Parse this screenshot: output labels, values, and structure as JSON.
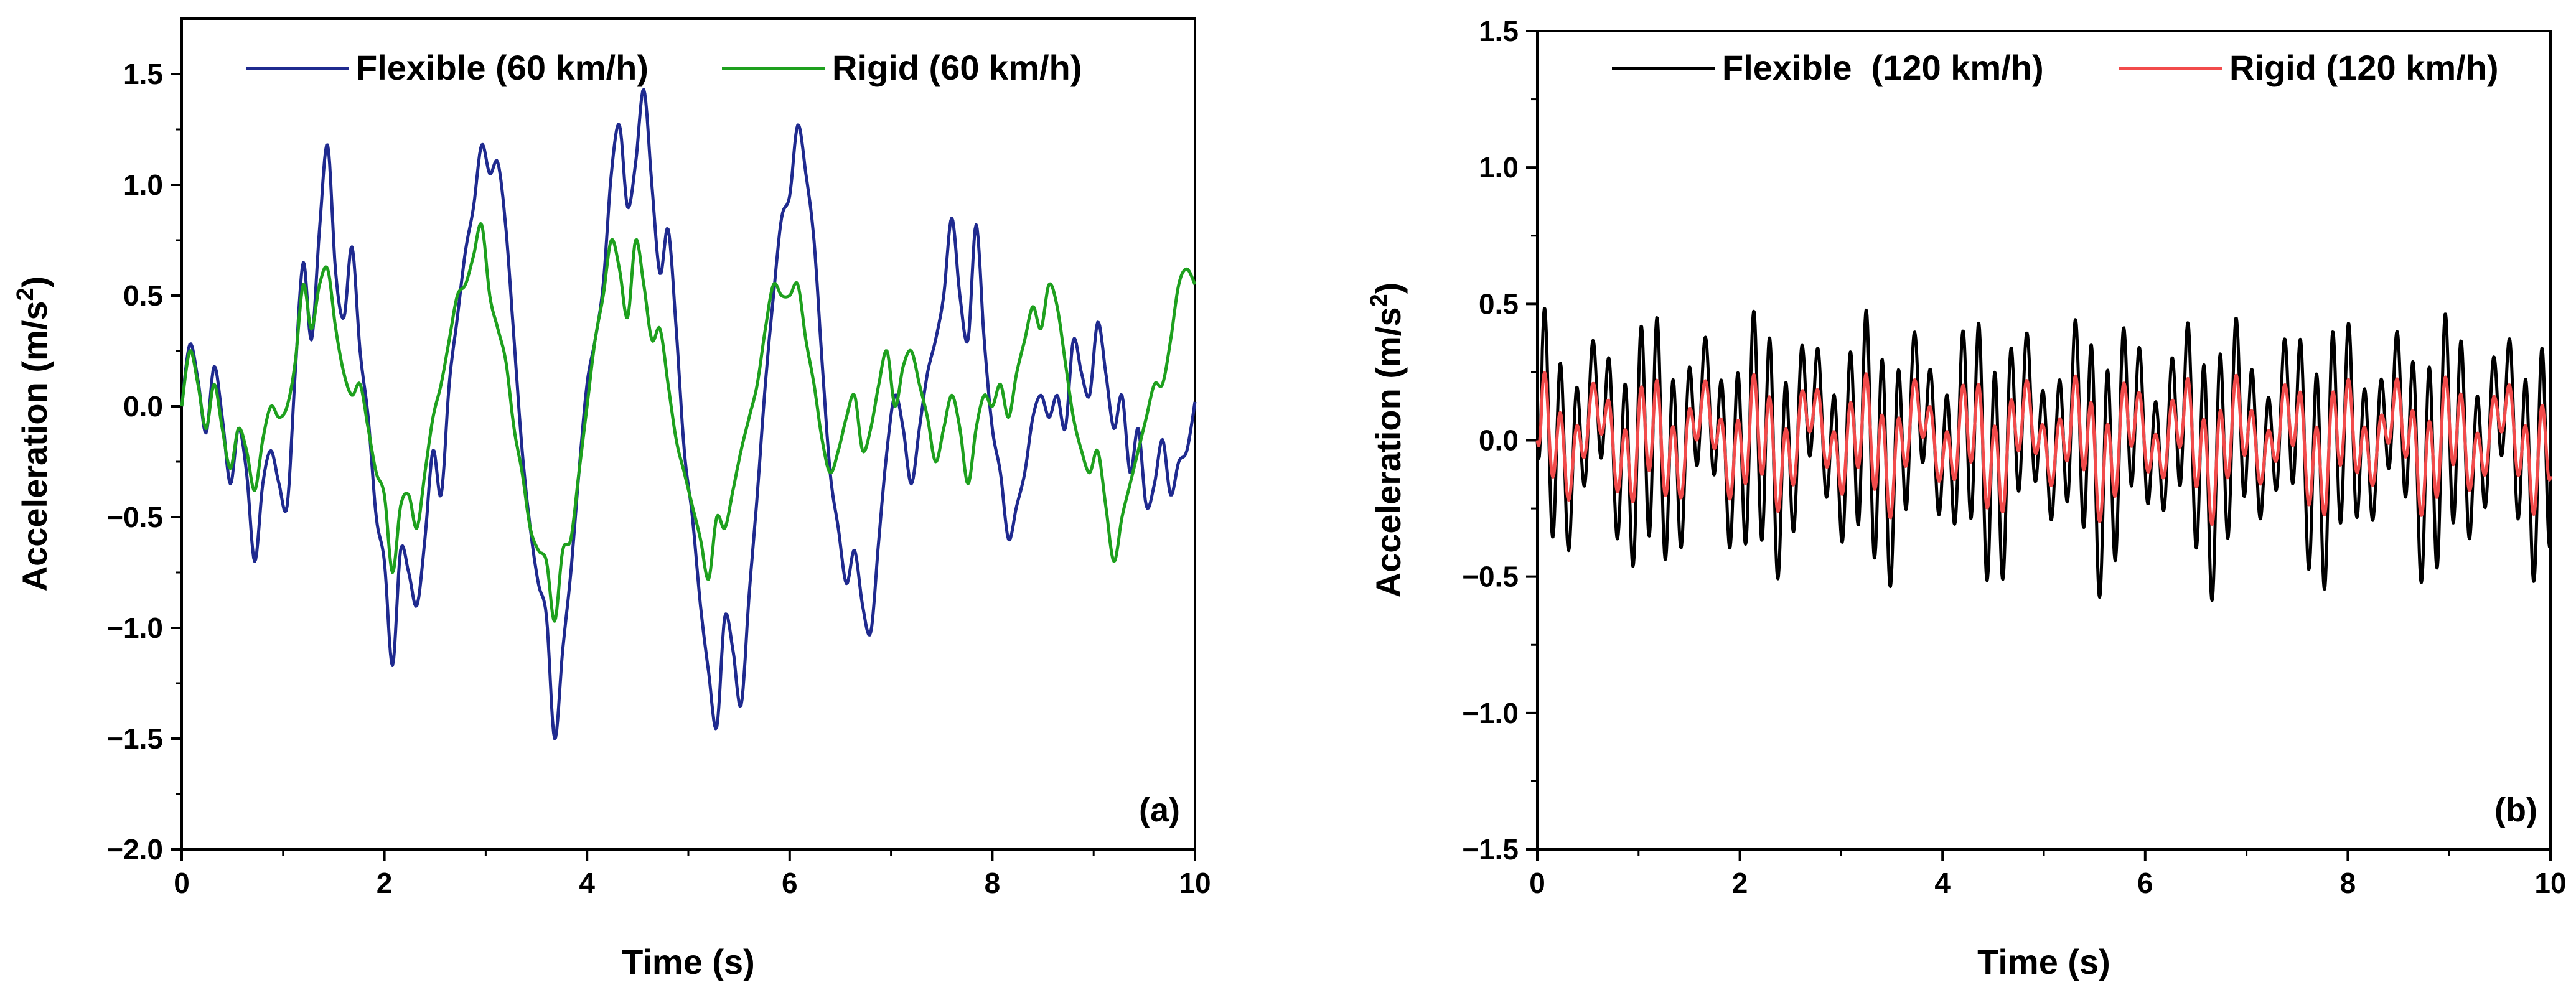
{
  "chart_data": [
    {
      "type": "line",
      "panel_label": "(a)",
      "xlabel": "Time (s)",
      "ylabel_main": "Acceleration (m/s",
      "ylabel_sup": "2",
      "ylabel_tail": ")",
      "xlim": [
        0,
        10
      ],
      "ylim": [
        -2.0,
        1.75
      ],
      "xticks": [
        0,
        2,
        4,
        6,
        8,
        10
      ],
      "xtick_labels": [
        "0",
        "2",
        "4",
        "6",
        "8",
        "10"
      ],
      "yticks": [
        -2.0,
        -1.5,
        -1.0,
        -0.5,
        0.0,
        0.5,
        1.0,
        1.5
      ],
      "ytick_labels": [
        "−2.0",
        "−1.5",
        "−1.0",
        "−0.5",
        "0.0",
        "0.5",
        "1.0",
        "1.5"
      ],
      "grid": false,
      "legend_position": "top",
      "series": [
        {
          "name": "Flexible (60 km/h)",
          "color": "#1f2a8f",
          "points": [
            [
              0,
              0.0
            ],
            [
              0.08,
              0.28
            ],
            [
              0.16,
              0.12
            ],
            [
              0.24,
              -0.12
            ],
            [
              0.32,
              0.18
            ],
            [
              0.4,
              -0.05
            ],
            [
              0.48,
              -0.35
            ],
            [
              0.56,
              -0.1
            ],
            [
              0.64,
              -0.3
            ],
            [
              0.72,
              -0.7
            ],
            [
              0.8,
              -0.35
            ],
            [
              0.88,
              -0.2
            ],
            [
              0.96,
              -0.35
            ],
            [
              1.04,
              -0.45
            ],
            [
              1.12,
              0.15
            ],
            [
              1.2,
              0.65
            ],
            [
              1.28,
              0.3
            ],
            [
              1.36,
              0.8
            ],
            [
              1.44,
              1.18
            ],
            [
              1.52,
              0.6
            ],
            [
              1.6,
              0.4
            ],
            [
              1.68,
              0.72
            ],
            [
              1.76,
              0.25
            ],
            [
              1.84,
              -0.05
            ],
            [
              1.92,
              -0.5
            ],
            [
              2.0,
              -0.7
            ],
            [
              2.08,
              -1.17
            ],
            [
              2.16,
              -0.65
            ],
            [
              2.24,
              -0.75
            ],
            [
              2.32,
              -0.9
            ],
            [
              2.4,
              -0.6
            ],
            [
              2.48,
              -0.2
            ],
            [
              2.56,
              -0.4
            ],
            [
              2.64,
              0.1
            ],
            [
              2.72,
              0.4
            ],
            [
              2.8,
              0.7
            ],
            [
              2.88,
              0.9
            ],
            [
              2.96,
              1.18
            ],
            [
              3.04,
              1.05
            ],
            [
              3.12,
              1.1
            ],
            [
              3.2,
              0.8
            ],
            [
              3.28,
              0.3
            ],
            [
              3.36,
              -0.2
            ],
            [
              3.44,
              -0.55
            ],
            [
              3.52,
              -0.8
            ],
            [
              3.6,
              -0.95
            ],
            [
              3.68,
              -1.5
            ],
            [
              3.76,
              -1.1
            ],
            [
              3.84,
              -0.75
            ],
            [
              3.92,
              -0.3
            ],
            [
              4.0,
              0.1
            ],
            [
              4.08,
              0.3
            ],
            [
              4.16,
              0.55
            ],
            [
              4.24,
              1.05
            ],
            [
              4.32,
              1.27
            ],
            [
              4.4,
              0.9
            ],
            [
              4.48,
              1.1
            ],
            [
              4.56,
              1.43
            ],
            [
              4.64,
              1.0
            ],
            [
              4.72,
              0.6
            ],
            [
              4.8,
              0.8
            ],
            [
              4.88,
              0.35
            ],
            [
              4.96,
              -0.2
            ],
            [
              5.04,
              -0.5
            ],
            [
              5.12,
              -0.9
            ],
            [
              5.2,
              -1.2
            ],
            [
              5.28,
              -1.45
            ],
            [
              5.36,
              -0.95
            ],
            [
              5.44,
              -1.1
            ],
            [
              5.52,
              -1.35
            ],
            [
              5.6,
              -0.85
            ],
            [
              5.68,
              -0.4
            ],
            [
              5.76,
              0.1
            ],
            [
              5.84,
              0.5
            ],
            [
              5.92,
              0.85
            ],
            [
              6.0,
              0.95
            ],
            [
              6.08,
              1.27
            ],
            [
              6.16,
              1.05
            ],
            [
              6.24,
              0.75
            ],
            [
              6.32,
              0.2
            ],
            [
              6.4,
              -0.3
            ],
            [
              6.48,
              -0.55
            ],
            [
              6.56,
              -0.8
            ],
            [
              6.64,
              -0.65
            ],
            [
              6.72,
              -0.9
            ],
            [
              6.8,
              -1.02
            ],
            [
              6.88,
              -0.6
            ],
            [
              6.96,
              -0.2
            ],
            [
              7.04,
              0.05
            ],
            [
              7.12,
              -0.1
            ],
            [
              7.2,
              -0.35
            ],
            [
              7.28,
              -0.1
            ],
            [
              7.36,
              0.15
            ],
            [
              7.44,
              0.3
            ],
            [
              7.52,
              0.5
            ],
            [
              7.6,
              0.85
            ],
            [
              7.68,
              0.5
            ],
            [
              7.76,
              0.3
            ],
            [
              7.84,
              0.82
            ],
            [
              7.92,
              0.3
            ],
            [
              8.0,
              -0.1
            ],
            [
              8.08,
              -0.3
            ],
            [
              8.16,
              -0.6
            ],
            [
              8.24,
              -0.45
            ],
            [
              8.32,
              -0.3
            ],
            [
              8.4,
              -0.05
            ],
            [
              8.48,
              0.05
            ],
            [
              8.56,
              -0.05
            ],
            [
              8.64,
              0.05
            ],
            [
              8.72,
              -0.1
            ],
            [
              8.8,
              0.3
            ],
            [
              8.88,
              0.15
            ],
            [
              8.96,
              0.05
            ],
            [
              9.04,
              0.38
            ],
            [
              9.12,
              0.15
            ],
            [
              9.2,
              -0.1
            ],
            [
              9.28,
              0.05
            ],
            [
              9.36,
              -0.3
            ],
            [
              9.44,
              -0.1
            ],
            [
              9.52,
              -0.45
            ],
            [
              9.6,
              -0.35
            ],
            [
              9.68,
              -0.15
            ],
            [
              9.76,
              -0.4
            ],
            [
              9.84,
              -0.25
            ],
            [
              9.92,
              -0.2
            ],
            [
              10.0,
              0.02
            ]
          ]
        },
        {
          "name": "Rigid (60 km/h)",
          "color": "#1ea01e",
          "points": [
            [
              0,
              0.0
            ],
            [
              0.08,
              0.25
            ],
            [
              0.16,
              0.1
            ],
            [
              0.24,
              -0.1
            ],
            [
              0.32,
              0.1
            ],
            [
              0.4,
              -0.1
            ],
            [
              0.48,
              -0.28
            ],
            [
              0.56,
              -0.1
            ],
            [
              0.64,
              -0.2
            ],
            [
              0.72,
              -0.38
            ],
            [
              0.8,
              -0.15
            ],
            [
              0.88,
              0.0
            ],
            [
              0.96,
              -0.05
            ],
            [
              1.04,
              0.0
            ],
            [
              1.12,
              0.2
            ],
            [
              1.2,
              0.55
            ],
            [
              1.28,
              0.35
            ],
            [
              1.36,
              0.55
            ],
            [
              1.44,
              0.62
            ],
            [
              1.52,
              0.35
            ],
            [
              1.6,
              0.15
            ],
            [
              1.68,
              0.05
            ],
            [
              1.76,
              0.1
            ],
            [
              1.84,
              -0.1
            ],
            [
              1.92,
              -0.3
            ],
            [
              2.0,
              -0.4
            ],
            [
              2.08,
              -0.75
            ],
            [
              2.16,
              -0.45
            ],
            [
              2.24,
              -0.4
            ],
            [
              2.32,
              -0.55
            ],
            [
              2.4,
              -0.3
            ],
            [
              2.48,
              -0.05
            ],
            [
              2.56,
              0.1
            ],
            [
              2.64,
              0.3
            ],
            [
              2.72,
              0.5
            ],
            [
              2.8,
              0.55
            ],
            [
              2.88,
              0.68
            ],
            [
              2.96,
              0.82
            ],
            [
              3.04,
              0.5
            ],
            [
              3.12,
              0.35
            ],
            [
              3.2,
              0.2
            ],
            [
              3.28,
              -0.1
            ],
            [
              3.36,
              -0.3
            ],
            [
              3.44,
              -0.55
            ],
            [
              3.52,
              -0.65
            ],
            [
              3.6,
              -0.7
            ],
            [
              3.68,
              -0.97
            ],
            [
              3.76,
              -0.65
            ],
            [
              3.84,
              -0.6
            ],
            [
              3.92,
              -0.3
            ],
            [
              4.0,
              0.0
            ],
            [
              4.08,
              0.3
            ],
            [
              4.16,
              0.5
            ],
            [
              4.24,
              0.75
            ],
            [
              4.32,
              0.62
            ],
            [
              4.4,
              0.4
            ],
            [
              4.48,
              0.75
            ],
            [
              4.56,
              0.55
            ],
            [
              4.64,
              0.3
            ],
            [
              4.72,
              0.35
            ],
            [
              4.8,
              0.1
            ],
            [
              4.88,
              -0.15
            ],
            [
              4.96,
              -0.3
            ],
            [
              5.04,
              -0.45
            ],
            [
              5.12,
              -0.6
            ],
            [
              5.2,
              -0.78
            ],
            [
              5.28,
              -0.5
            ],
            [
              5.36,
              -0.55
            ],
            [
              5.44,
              -0.38
            ],
            [
              5.52,
              -0.2
            ],
            [
              5.6,
              -0.05
            ],
            [
              5.68,
              0.1
            ],
            [
              5.76,
              0.35
            ],
            [
              5.84,
              0.55
            ],
            [
              5.92,
              0.5
            ],
            [
              6.0,
              0.5
            ],
            [
              6.08,
              0.55
            ],
            [
              6.16,
              0.3
            ],
            [
              6.24,
              0.1
            ],
            [
              6.32,
              -0.15
            ],
            [
              6.4,
              -0.3
            ],
            [
              6.48,
              -0.2
            ],
            [
              6.56,
              -0.05
            ],
            [
              6.64,
              0.05
            ],
            [
              6.72,
              -0.2
            ],
            [
              6.8,
              -0.1
            ],
            [
              6.88,
              0.1
            ],
            [
              6.96,
              0.25
            ],
            [
              7.04,
              0.0
            ],
            [
              7.12,
              0.18
            ],
            [
              7.2,
              0.25
            ],
            [
              7.28,
              0.1
            ],
            [
              7.36,
              -0.05
            ],
            [
              7.44,
              -0.25
            ],
            [
              7.52,
              -0.1
            ],
            [
              7.6,
              0.05
            ],
            [
              7.68,
              -0.1
            ],
            [
              7.76,
              -0.35
            ],
            [
              7.84,
              -0.1
            ],
            [
              7.92,
              0.05
            ],
            [
              8.0,
              0.0
            ],
            [
              8.08,
              0.1
            ],
            [
              8.16,
              -0.05
            ],
            [
              8.24,
              0.15
            ],
            [
              8.32,
              0.3
            ],
            [
              8.4,
              0.45
            ],
            [
              8.48,
              0.35
            ],
            [
              8.56,
              0.55
            ],
            [
              8.64,
              0.45
            ],
            [
              8.72,
              0.2
            ],
            [
              8.8,
              -0.05
            ],
            [
              8.88,
              -0.2
            ],
            [
              8.96,
              -0.3
            ],
            [
              9.04,
              -0.2
            ],
            [
              9.12,
              -0.45
            ],
            [
              9.2,
              -0.7
            ],
            [
              9.28,
              -0.5
            ],
            [
              9.36,
              -0.35
            ],
            [
              9.44,
              -0.2
            ],
            [
              9.52,
              -0.05
            ],
            [
              9.6,
              0.1
            ],
            [
              9.68,
              0.1
            ],
            [
              9.76,
              0.3
            ],
            [
              9.84,
              0.55
            ],
            [
              9.92,
              0.62
            ],
            [
              10.0,
              0.55
            ]
          ]
        }
      ]
    },
    {
      "type": "line",
      "panel_label": "(b)",
      "xlabel": "Time (s)",
      "ylabel_main": "Acceleration (m/s",
      "ylabel_sup": "2",
      "ylabel_tail": ")",
      "xlim": [
        0,
        10
      ],
      "ylim": [
        -1.5,
        1.5
      ],
      "xticks": [
        0,
        2,
        4,
        6,
        8,
        10
      ],
      "xtick_labels": [
        "0",
        "2",
        "4",
        "6",
        "8",
        "10"
      ],
      "yticks": [
        -1.5,
        -1.0,
        -0.5,
        0.0,
        0.5,
        1.0,
        1.5
      ],
      "ytick_labels": [
        "−1.5",
        "−1.0",
        "−0.5",
        "0.0",
        "0.5",
        "1.0",
        "1.5"
      ],
      "grid": false,
      "legend_position": "top",
      "series": [
        {
          "name": "Flexible  (120 km/h)",
          "color": "#000000",
          "base": {
            "amp": 0.42,
            "freq": 6.3,
            "phase": -1.3,
            "env": 0.28,
            "envfreq": 0.3,
            "bias": -0.05,
            "sub": 0.12,
            "subfreq": 1.9
          }
        },
        {
          "name": "Rigid (120 km/h)",
          "color": "#f24b4b",
          "base": {
            "amp": 0.18,
            "freq": 6.3,
            "phase": -1.3,
            "env": 0.12,
            "envfreq": 0.3,
            "bias": -0.03,
            "sub": 0.1,
            "subfreq": 1.9
          }
        }
      ]
    }
  ]
}
